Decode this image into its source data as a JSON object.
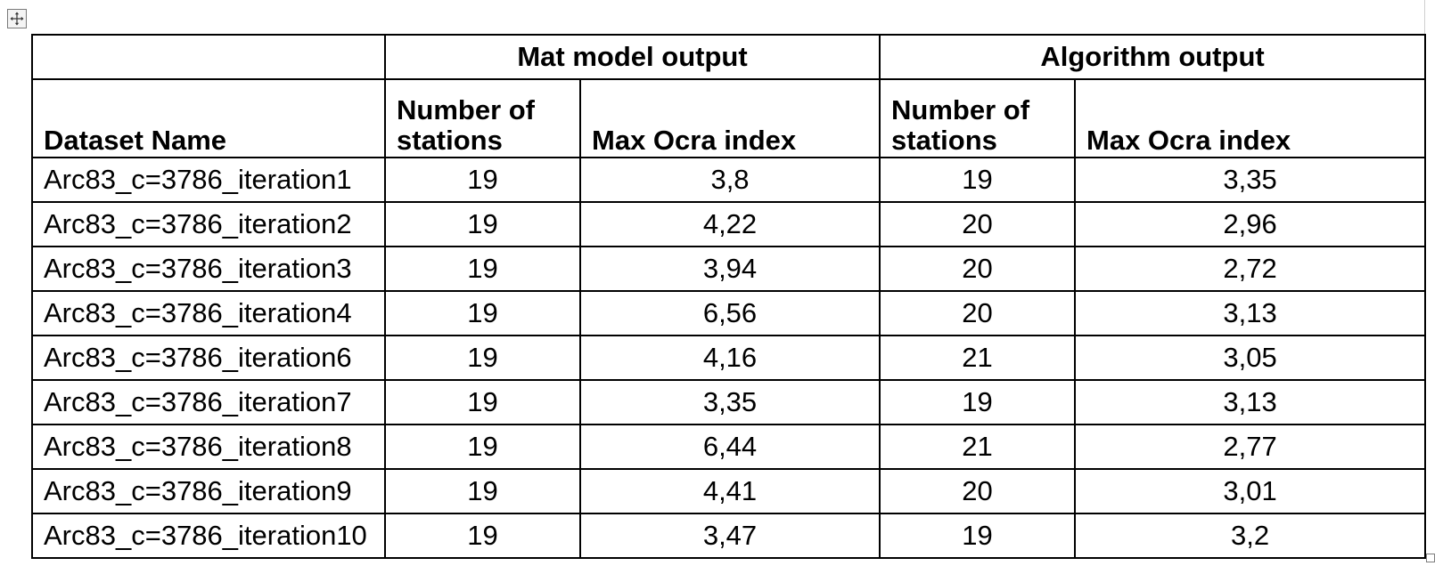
{
  "table": {
    "group_headers": {
      "mat_model": "Mat model output",
      "algorithm": "Algorithm output"
    },
    "column_headers": {
      "dataset_name": "Dataset Name",
      "mat_stations": "Number of stations",
      "mat_ocra": "Max Ocra index",
      "alg_stations": "Number of stations",
      "alg_ocra": "Max Ocra index"
    },
    "rows": [
      [
        "Arc83_c=3786_iteration1",
        "19",
        "3,8",
        "19",
        "3,35"
      ],
      [
        "Arc83_c=3786_iteration2",
        "19",
        "4,22",
        "20",
        "2,96"
      ],
      [
        "Arc83_c=3786_iteration3",
        "19",
        "3,94",
        "20",
        "2,72"
      ],
      [
        "Arc83_c=3786_iteration4",
        "19",
        "6,56",
        "20",
        "3,13"
      ],
      [
        "Arc83_c=3786_iteration6",
        "19",
        "4,16",
        "21",
        "3,05"
      ],
      [
        "Arc83_c=3786_iteration7",
        "19",
        "3,35",
        "19",
        "3,13"
      ],
      [
        "Arc83_c=3786_iteration8",
        "19",
        "6,44",
        "21",
        "2,77"
      ],
      [
        "Arc83_c=3786_iteration9",
        "19",
        "4,41",
        "20",
        "3,01"
      ],
      [
        "Arc83_c=3786_iteration10",
        "19",
        "3,47",
        "19",
        "3,2"
      ]
    ]
  },
  "icons": {
    "move_handle": "move-arrows-icon",
    "resize_handle": "resize-corner-icon"
  },
  "colors": {
    "border": "#000000",
    "spellcheck_underline": "#d0021b"
  }
}
